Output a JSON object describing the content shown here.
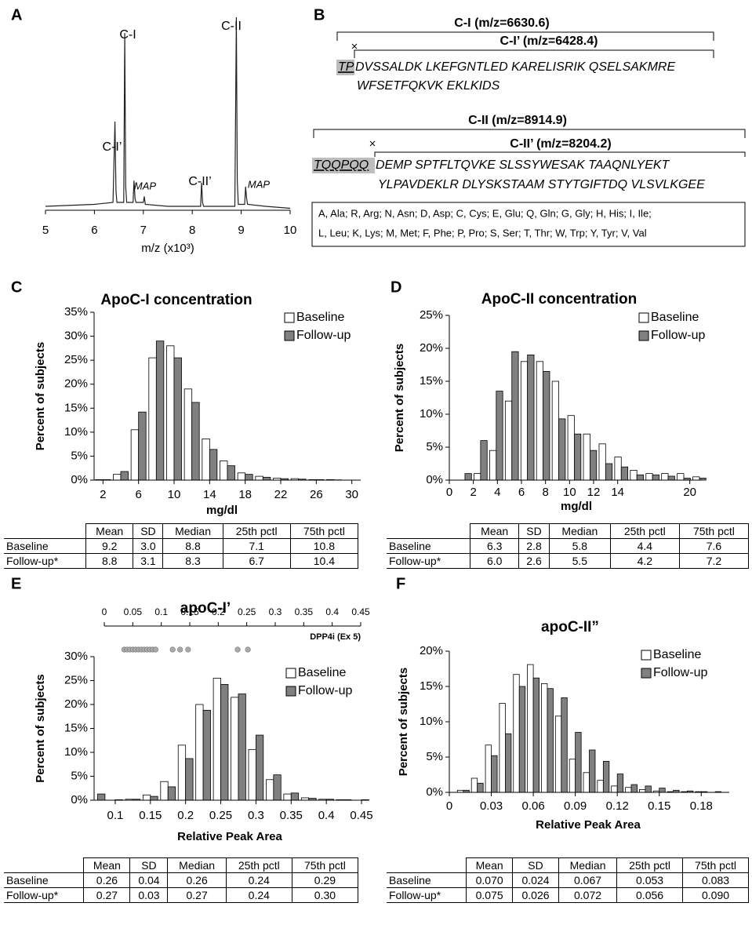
{
  "panel_labels": [
    "A",
    "B",
    "C",
    "D",
    "E",
    "F"
  ],
  "chart_data": [
    {
      "type": "line",
      "x": [
        5.0,
        6.0,
        6.38,
        6.42,
        6.44,
        6.46,
        6.6,
        6.62,
        6.64,
        6.66,
        6.79,
        6.81,
        6.83,
        6.85,
        7.0,
        7.02,
        7.04,
        7.5,
        8.0,
        8.17,
        8.19,
        8.21,
        8.23,
        8.87,
        8.9,
        8.92,
        8.94,
        9.07,
        9.09,
        9.11,
        9.13,
        9.5,
        10.0
      ],
      "values": [
        0.02,
        0.03,
        0.04,
        0.45,
        0.1,
        0.04,
        0.04,
        0.9,
        0.12,
        0.04,
        0.04,
        0.15,
        0.06,
        0.04,
        0.04,
        0.07,
        0.03,
        0.02,
        0.02,
        0.02,
        0.14,
        0.04,
        0.02,
        0.02,
        0.98,
        0.15,
        0.03,
        0.03,
        0.12,
        0.06,
        0.03,
        0.02,
        0.01
      ],
      "color": "#222222",
      "xlim": [
        5,
        10
      ],
      "xticks": [
        5,
        6,
        7,
        8,
        9,
        10
      ],
      "xlabel": "m/z (x10³)",
      "annotations": [
        "C-I’",
        "C-I",
        "MAP",
        "C-II’",
        "C-II",
        "MAP"
      ]
    },
    {
      "type": "bar",
      "title": "ApoC-I concentration",
      "xlabel": "mg/dl",
      "ylabel": "Percent of subjects",
      "x": [
        2,
        4,
        6,
        8,
        10,
        12,
        14,
        16,
        18,
        20,
        22,
        24,
        26,
        28,
        30
      ],
      "series": [
        {
          "name": "Baseline",
          "color": "#ffffff",
          "values": [
            0.1,
            1.2,
            10.5,
            25.5,
            28,
            19,
            8.6,
            4,
            1.5,
            0.8,
            0.4,
            0.3,
            0.1,
            0.1,
            0
          ]
        },
        {
          "name": "Follow-up",
          "color": "#808080",
          "values": [
            0.1,
            1.8,
            14.2,
            29,
            25.5,
            16.2,
            6.4,
            3,
            1.2,
            0.6,
            0.3,
            0.2,
            0.1,
            0.05,
            0
          ]
        }
      ],
      "xlim": [
        1,
        31
      ],
      "xticks": [
        2,
        6,
        10,
        14,
        18,
        22,
        26,
        30
      ],
      "ylim": [
        0,
        35
      ],
      "yticks": [
        {
          "value": 0,
          "label": "0%"
        },
        {
          "value": 5,
          "label": "5%"
        },
        {
          "value": 10,
          "label": "10%"
        },
        {
          "value": 15,
          "label": "15%"
        },
        {
          "value": 20,
          "label": "20%"
        },
        {
          "value": 25,
          "label": "25%"
        },
        {
          "value": 30,
          "label": "30%"
        },
        {
          "value": 35,
          "label": "35%"
        }
      ],
      "legend": "upper right"
    },
    {
      "type": "bar",
      "title": "ApoC-II concentration",
      "xlabel": "mg/dl",
      "ylabel": "Percent of subjects",
      "x": [
        1.3,
        2.6,
        3.9,
        5.2,
        6.5,
        7.8,
        9.1,
        10.4,
        11.7,
        13.0,
        14.3,
        15.6,
        16.9,
        18.2,
        19.5,
        20.8
      ],
      "series": [
        {
          "name": "Baseline",
          "color": "#ffffff",
          "values": [
            0,
            1.0,
            4.5,
            12,
            18,
            18,
            15,
            9.8,
            7,
            5.5,
            3.5,
            1.5,
            1,
            1,
            1,
            0.5
          ]
        },
        {
          "name": "Follow-up",
          "color": "#808080",
          "values": [
            1.0,
            6,
            13.5,
            19.5,
            19,
            16.5,
            9.3,
            7,
            4.5,
            2.5,
            2,
            0.8,
            0.8,
            0.6,
            0.3,
            0.3
          ]
        }
      ],
      "xlim": [
        0,
        21
      ],
      "xticks": [
        0,
        2,
        4,
        6,
        8,
        10,
        12,
        14,
        20
      ],
      "ylim": [
        0,
        25
      ],
      "yticks": [
        {
          "value": 0,
          "label": "0%"
        },
        {
          "value": 5,
          "label": "5%"
        },
        {
          "value": 10,
          "label": "10%"
        },
        {
          "value": 15,
          "label": "15%"
        },
        {
          "value": 20,
          "label": "20%"
        },
        {
          "value": 25,
          "label": "25%"
        }
      ],
      "legend": "upper right"
    },
    {
      "type": "bar",
      "title": "apoC-I’",
      "xlabel": "Relative Peak Area",
      "ylabel": "Percent of subjects",
      "x": [
        0.075,
        0.1,
        0.125,
        0.15,
        0.175,
        0.2,
        0.225,
        0.25,
        0.275,
        0.3,
        0.325,
        0.35,
        0.375,
        0.4,
        0.425,
        0.45
      ],
      "series": [
        {
          "name": "Baseline",
          "color": "#ffffff",
          "values": [
            0,
            0,
            0.2,
            1.1,
            3.9,
            11.5,
            20,
            25.5,
            21.5,
            10.6,
            4.3,
            1.3,
            0.5,
            0.2,
            0.1,
            0
          ]
        },
        {
          "name": "Follow-up",
          "color": "#808080",
          "values": [
            1.3,
            0.1,
            0.2,
            0.8,
            2.8,
            8.7,
            18.8,
            24.2,
            22.2,
            13.6,
            5.3,
            1.5,
            0.4,
            0.2,
            0.1,
            0.1
          ]
        }
      ],
      "xlim": [
        0.07,
        0.46
      ],
      "xticks": [
        0.1,
        0.15,
        0.2,
        0.25,
        0.3,
        0.35,
        0.4,
        0.45
      ],
      "ylim": [
        0,
        30
      ],
      "yticks": [
        {
          "value": 0,
          "label": "0%"
        },
        {
          "value": 5,
          "label": "5%"
        },
        {
          "value": 10,
          "label": "10%"
        },
        {
          "value": 15,
          "label": "15%"
        },
        {
          "value": 20,
          "label": "20%"
        },
        {
          "value": 25,
          "label": "25%"
        },
        {
          "value": 30,
          "label": "30%"
        }
      ],
      "legend": "upper right"
    },
    {
      "type": "strip",
      "xlabel": "DPP4i (Ex 5)",
      "color": "#aaaaaa",
      "x": [
        0.035,
        0.04,
        0.045,
        0.05,
        0.055,
        0.06,
        0.065,
        0.07,
        0.075,
        0.08,
        0.085,
        0.09,
        0.12,
        0.133,
        0.147,
        0.234,
        0.252
      ],
      "xlim": [
        0,
        0.45
      ],
      "xticks": [
        0,
        0.05,
        0.1,
        0.15,
        0.2,
        0.25,
        0.3,
        0.35,
        0.4,
        0.45
      ]
    },
    {
      "type": "bar",
      "title": "apoC-II”",
      "xlabel": "Relative Peak Area",
      "ylabel": "Percent of subjects",
      "x": [
        0.01,
        0.02,
        0.03,
        0.04,
        0.05,
        0.06,
        0.07,
        0.08,
        0.09,
        0.1,
        0.11,
        0.12,
        0.13,
        0.14,
        0.15,
        0.16,
        0.17,
        0.18,
        0.19
      ],
      "series": [
        {
          "name": "Baseline",
          "color": "#ffffff",
          "values": [
            0.3,
            2.0,
            6.7,
            12.6,
            16.7,
            18.1,
            15.4,
            10.8,
            4.7,
            2.8,
            1.7,
            0.9,
            0.7,
            0.4,
            0.2,
            0.1,
            0.1,
            0.1,
            0
          ]
        },
        {
          "name": "Follow-up",
          "color": "#808080",
          "values": [
            0.3,
            1.3,
            5.2,
            8.3,
            15.0,
            16.2,
            14.7,
            13.4,
            8.5,
            6.0,
            4.4,
            2.6,
            1.1,
            0.9,
            0.6,
            0.3,
            0.2,
            0.1,
            0.1
          ]
        }
      ],
      "xlim": [
        0,
        0.2
      ],
      "xticks": [
        0,
        0.03,
        0.06,
        0.09,
        0.12,
        0.15,
        0.18
      ],
      "ylim": [
        0,
        20
      ],
      "yticks": [
        {
          "value": 0,
          "label": "0%"
        },
        {
          "value": 5,
          "label": "5%"
        },
        {
          "value": 10,
          "label": "10%"
        },
        {
          "value": 15,
          "label": "15%"
        },
        {
          "value": 20,
          "label": "20%"
        }
      ],
      "legend": "upper right"
    }
  ],
  "sequences": [
    {
      "title": "C-I (m/z=6630.6)",
      "cleaved_title": "C-I’ (m/z=6428.4)",
      "removed": "TP",
      "lines": [
        "DVSSALDK LKEFGNTLED KARELISRIK QSELSAKMRE",
        "WFSETFQKVK EKLKIDS"
      ]
    },
    {
      "title": "C-II (m/z=8914.9)",
      "cleaved_title": "C-II’ (m/z=8204.2)",
      "removed": "TQQPQQ",
      "lines": [
        "DEMP SPTFLTQVKE SLSSYWESAK TAAQNLYEKT",
        "YLPAVDEKLR DLYSKSTAAM STYTGIFTDQ VLSVLKGEE"
      ]
    }
  ],
  "abbreviations": [
    "A, Ala; R, Arg; N, Asn; D, Asp; C, Cys; E, Glu; Q, Gln; G, Gly; H, His; I, Ile;",
    "L, Leu; K, Lys; M, Met; F, Phe; P, Pro; S, Ser; T, Thr; W, Trp; Y, Tyr; V, Val"
  ],
  "tables": [
    {
      "columns": [
        "Mean",
        "SD",
        "Median",
        "25th pctl",
        "75th pctl"
      ],
      "rows": [
        {
          "label": "Baseline",
          "values": [
            "9.2",
            "3.0",
            "8.8",
            "7.1",
            "10.8"
          ]
        },
        {
          "label": "Follow-up*",
          "values": [
            "8.8",
            "3.1",
            "8.3",
            "6.7",
            "10.4"
          ]
        }
      ]
    },
    {
      "columns": [
        "Mean",
        "SD",
        "Median",
        "25th pctl",
        "75th pctl"
      ],
      "rows": [
        {
          "label": "Baseline",
          "values": [
            "6.3",
            "2.8",
            "5.8",
            "4.4",
            "7.6"
          ]
        },
        {
          "label": "Follow-up*",
          "values": [
            "6.0",
            "2.6",
            "5.5",
            "4.2",
            "7.2"
          ]
        }
      ]
    },
    {
      "columns": [
        "Mean",
        "SD",
        "Median",
        "25th pctl",
        "75th pctl"
      ],
      "rows": [
        {
          "label": "Baseline",
          "values": [
            "0.26",
            "0.04",
            "0.26",
            "0.24",
            "0.29"
          ]
        },
        {
          "label": "Follow-up*",
          "values": [
            "0.27",
            "0.03",
            "0.27",
            "0.24",
            "0.30"
          ]
        }
      ]
    },
    {
      "columns": [
        "Mean",
        "SD",
        "Median",
        "25th pctl",
        "75th pctl"
      ],
      "rows": [
        {
          "label": "Baseline",
          "values": [
            "0.070",
            "0.024",
            "0.067",
            "0.053",
            "0.083"
          ]
        },
        {
          "label": "Follow-up*",
          "values": [
            "0.075",
            "0.026",
            "0.072",
            "0.056",
            "0.090"
          ]
        }
      ]
    }
  ]
}
